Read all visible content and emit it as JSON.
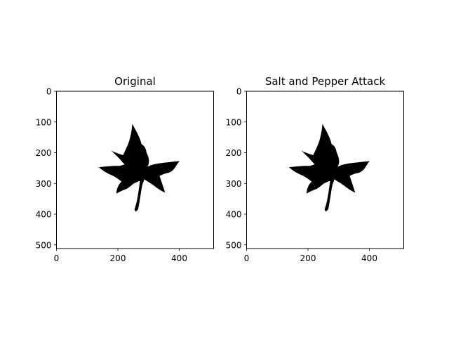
{
  "chart_data": [
    {
      "type": "image",
      "title": "Original",
      "xlim": [
        0,
        512
      ],
      "ylim": [
        512,
        0
      ],
      "xticks": [
        0,
        200,
        400
      ],
      "yticks": [
        0,
        100,
        200,
        300,
        400,
        500
      ],
      "image_content": "black maple leaf silhouette on white background",
      "colors": {
        "leaf": "#000000",
        "background": "#ffffff"
      }
    },
    {
      "type": "image",
      "title": "Salt and Pepper Attack",
      "xlim": [
        0,
        512
      ],
      "ylim": [
        512,
        0
      ],
      "xticks": [
        0,
        200,
        400
      ],
      "yticks": [
        0,
        100,
        200,
        300,
        400,
        500
      ],
      "image_content": "black maple leaf silhouette on white background",
      "colors": {
        "leaf": "#000000",
        "background": "#ffffff"
      }
    }
  ]
}
